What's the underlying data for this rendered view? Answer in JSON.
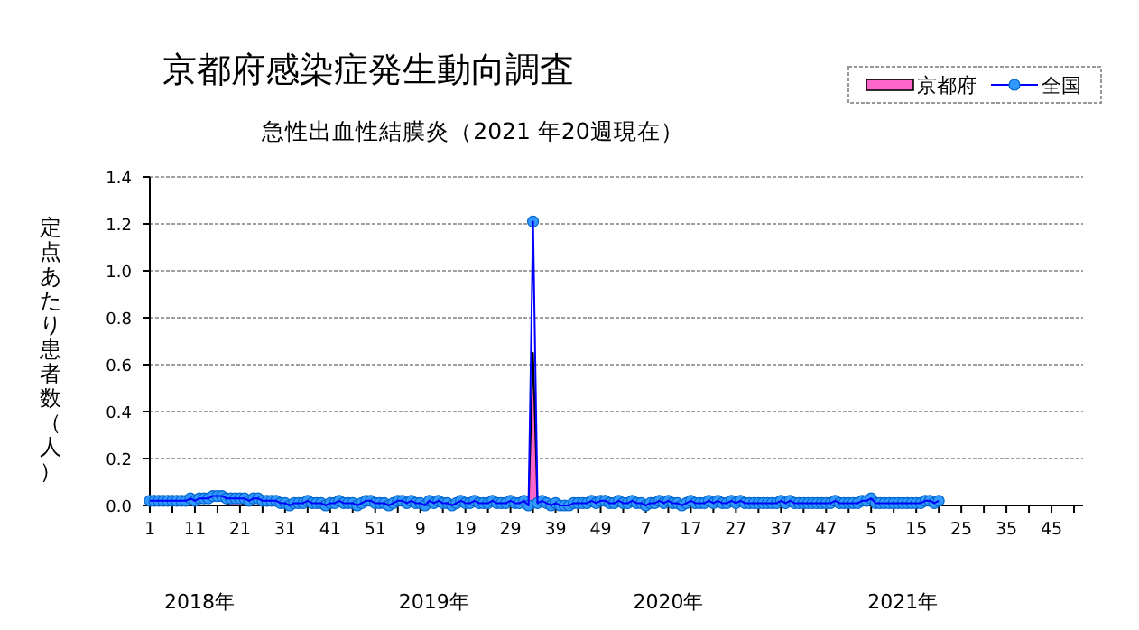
{
  "chart_data": {
    "type": "line",
    "title": "京都府感染症発生動向調査",
    "subtitle": "急性出血性結膜炎（2021 年20週現在）",
    "ylabel": "定点あたり患者数（人）",
    "categories": [
      "1",
      null,
      null,
      null,
      null,
      null,
      null,
      null,
      null,
      null,
      "11",
      null,
      null,
      null,
      null,
      null,
      null,
      null,
      null,
      null,
      "21",
      null,
      null,
      null,
      null,
      null,
      null,
      null,
      null,
      null,
      "31",
      null,
      null,
      null,
      null,
      null,
      null,
      null,
      null,
      null,
      "41",
      null,
      null,
      null,
      null,
      null,
      null,
      null,
      null,
      null,
      "51",
      null,
      null,
      null,
      null,
      null,
      null,
      null,
      null,
      null,
      "9",
      null,
      null,
      null,
      null,
      null,
      null,
      null,
      null,
      null,
      "19",
      null,
      null,
      null,
      null,
      null,
      null,
      null,
      null,
      null,
      "29",
      null,
      null,
      null,
      null,
      null,
      null,
      null,
      null,
      null,
      "39",
      null,
      null,
      null,
      null,
      null,
      null,
      null,
      null,
      null,
      "49",
      null,
      null,
      null,
      null,
      null,
      null,
      null,
      null,
      null,
      "7",
      null,
      null,
      null,
      null,
      null,
      null,
      null,
      null,
      null,
      "17",
      null,
      null,
      null,
      null,
      null,
      null,
      null,
      null,
      null,
      "27",
      null,
      null,
      null,
      null,
      null,
      null,
      null,
      null,
      null,
      "37",
      null,
      null,
      null,
      null,
      null,
      null,
      null,
      null,
      null,
      "47",
      null,
      null,
      null,
      null,
      null,
      null,
      null,
      null,
      null,
      "5",
      null,
      null,
      null,
      null,
      null,
      null,
      null,
      null,
      null,
      "15",
      null,
      null,
      null,
      null,
      null,
      null,
      null,
      null,
      null,
      "25",
      null,
      null,
      null,
      null,
      null,
      null,
      null,
      null,
      null,
      "35",
      null,
      null,
      null,
      null,
      null,
      null,
      null,
      null,
      null,
      "45",
      null,
      null,
      null,
      null,
      null,
      null,
      null
    ],
    "series": [
      {
        "name": "京都府",
        "type": "area",
        "color": "#ff66cc",
        "values": [
          0,
          0.04,
          0,
          0,
          0,
          0,
          0,
          0.04,
          0,
          0,
          0,
          0,
          0,
          0,
          0,
          0,
          0,
          0,
          0.02,
          0.02,
          0.02,
          0,
          0,
          0,
          0,
          0,
          0,
          0,
          0,
          0,
          0,
          0,
          0,
          0,
          0,
          0,
          0,
          0,
          0,
          0,
          0,
          0,
          0,
          0,
          0,
          0,
          0,
          0,
          0,
          0,
          0,
          0,
          0,
          0,
          0,
          0,
          0,
          0,
          0,
          0,
          0,
          0,
          0,
          0,
          0,
          0,
          0,
          0,
          0,
          0,
          0,
          0,
          0,
          0,
          0,
          0,
          0,
          0,
          0,
          0,
          0,
          0,
          0,
          0,
          0,
          0.65,
          0,
          0,
          0,
          0,
          0,
          0,
          0,
          0,
          0,
          0,
          0,
          0,
          0,
          0,
          0,
          0.04,
          0,
          0,
          0,
          0,
          0,
          0,
          0,
          0,
          0,
          0,
          0,
          0,
          0,
          0,
          0,
          0,
          0,
          0,
          0,
          0,
          0,
          0,
          0,
          0,
          0,
          0,
          0,
          0,
          0,
          0,
          0,
          0,
          0,
          0,
          0,
          0,
          0,
          0,
          0,
          0,
          0,
          0,
          0,
          0,
          0,
          0,
          0,
          0,
          0,
          0,
          0,
          0,
          0,
          0,
          0,
          0,
          0,
          0,
          0,
          0,
          0,
          0,
          0,
          0,
          0,
          0,
          0,
          0,
          0,
          0,
          0,
          0,
          0,
          0,
          null,
          null,
          null,
          null,
          null,
          null,
          null,
          null,
          null,
          null,
          null,
          null,
          null,
          null,
          null,
          null,
          null,
          null,
          null,
          null,
          null,
          null,
          null,
          null,
          null,
          null,
          null,
          null,
          null,
          null,
          null,
          null
        ]
      },
      {
        "name": "全国",
        "type": "line",
        "color": "#3399ff",
        "marker": "circle",
        "values": [
          0.02,
          0.02,
          0.02,
          0.02,
          0.02,
          0.02,
          0.02,
          0.02,
          0.02,
          0.03,
          0.02,
          0.03,
          0.03,
          0.03,
          0.04,
          0.04,
          0.04,
          0.03,
          0.03,
          0.03,
          0.03,
          0.03,
          0.02,
          0.03,
          0.03,
          0.02,
          0.02,
          0.02,
          0.02,
          0.01,
          0.01,
          0,
          0.01,
          0.01,
          0.01,
          0.02,
          0.01,
          0.01,
          0.01,
          0,
          0.01,
          0.01,
          0.02,
          0.01,
          0.01,
          0.01,
          0,
          0.01,
          0.02,
          0.02,
          0.01,
          0.01,
          0.01,
          0,
          0.01,
          0.02,
          0.02,
          0.01,
          0.02,
          0.01,
          0.01,
          0,
          0.02,
          0.01,
          0.02,
          0.01,
          0.01,
          0,
          0.01,
          0.02,
          0.01,
          0.01,
          0.02,
          0.01,
          0.01,
          0.01,
          0.02,
          0.01,
          0.01,
          0.01,
          0.02,
          0.01,
          0.01,
          0.02,
          0,
          1.21,
          0.01,
          0.02,
          0.01,
          0,
          0.01,
          0,
          0,
          0,
          0.01,
          0.01,
          0.01,
          0.01,
          0.02,
          0.01,
          0.02,
          0.02,
          0.01,
          0.01,
          0.02,
          0.01,
          0.01,
          0.02,
          0.01,
          0.01,
          0,
          0.01,
          0.01,
          0.02,
          0.01,
          0.02,
          0.01,
          0.01,
          0,
          0.01,
          0.02,
          0.01,
          0.01,
          0.01,
          0.02,
          0.01,
          0.02,
          0.01,
          0.01,
          0.02,
          0.01,
          0.02,
          0.01,
          0.01,
          0.01,
          0.01,
          0.01,
          0.01,
          0.01,
          0.01,
          0.02,
          0.01,
          0.02,
          0.01,
          0.01,
          0.01,
          0.01,
          0.01,
          0.01,
          0.01,
          0.01,
          0.01,
          0.02,
          0.01,
          0.01,
          0.01,
          0.01,
          0.01,
          0.02,
          0.02,
          0.03,
          0.01,
          0.01,
          0.01,
          0.01,
          0.01,
          0.01,
          0.01,
          0.01,
          0.01,
          0.01,
          0.01,
          0.02,
          0.02,
          0.01,
          0.02,
          null,
          null,
          null,
          null,
          null,
          null,
          null,
          null,
          null,
          null,
          null,
          null,
          null,
          null,
          null,
          null,
          null,
          null,
          null,
          null,
          null,
          null,
          null,
          null,
          null,
          null,
          null,
          null,
          null,
          null,
          null,
          null
        ]
      }
    ],
    "ylim": [
      0,
      1.4
    ],
    "yticks": [
      {
        "value": 0,
        "label": "0.0"
      },
      {
        "value": 0.2,
        "label": "0.2"
      },
      {
        "value": 0.4,
        "label": "0.4"
      },
      {
        "value": 0.6,
        "label": "0.6"
      },
      {
        "value": 0.8,
        "label": "0.8"
      },
      {
        "value": 1,
        "label": "1.0"
      },
      {
        "value": 1.2,
        "label": "1.2"
      },
      {
        "value": 1.4,
        "label": "1.4"
      }
    ],
    "grid": "y",
    "legend": "top right",
    "annotations": [
      "2018年",
      "2019年",
      "2020年",
      "2021年"
    ]
  }
}
